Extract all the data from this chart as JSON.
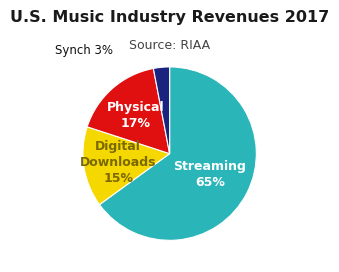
{
  "title": "U.S. Music Industry Revenues 2017",
  "subtitle": "Source: RIAA",
  "slices": [
    {
      "label": "Streaming",
      "pct": 65,
      "color": "#2ab5b8",
      "text_color": "#ffffff",
      "label_inside": true,
      "r_label": 0.52
    },
    {
      "label": "Digital\nDownloads",
      "pct": 15,
      "color": "#f5d800",
      "text_color": "#7a6800",
      "label_inside": true,
      "r_label": 0.6
    },
    {
      "label": "Physical",
      "pct": 17,
      "color": "#e01010",
      "text_color": "#ffffff",
      "label_inside": true,
      "r_label": 0.6
    },
    {
      "label": "Synch",
      "pct": 3,
      "color": "#1a237e",
      "text_color": "#000000",
      "label_inside": false,
      "r_label": 1.25
    }
  ],
  "title_fontsize": 11.5,
  "subtitle_fontsize": 9,
  "label_fontsize": 9,
  "startangle": 90
}
